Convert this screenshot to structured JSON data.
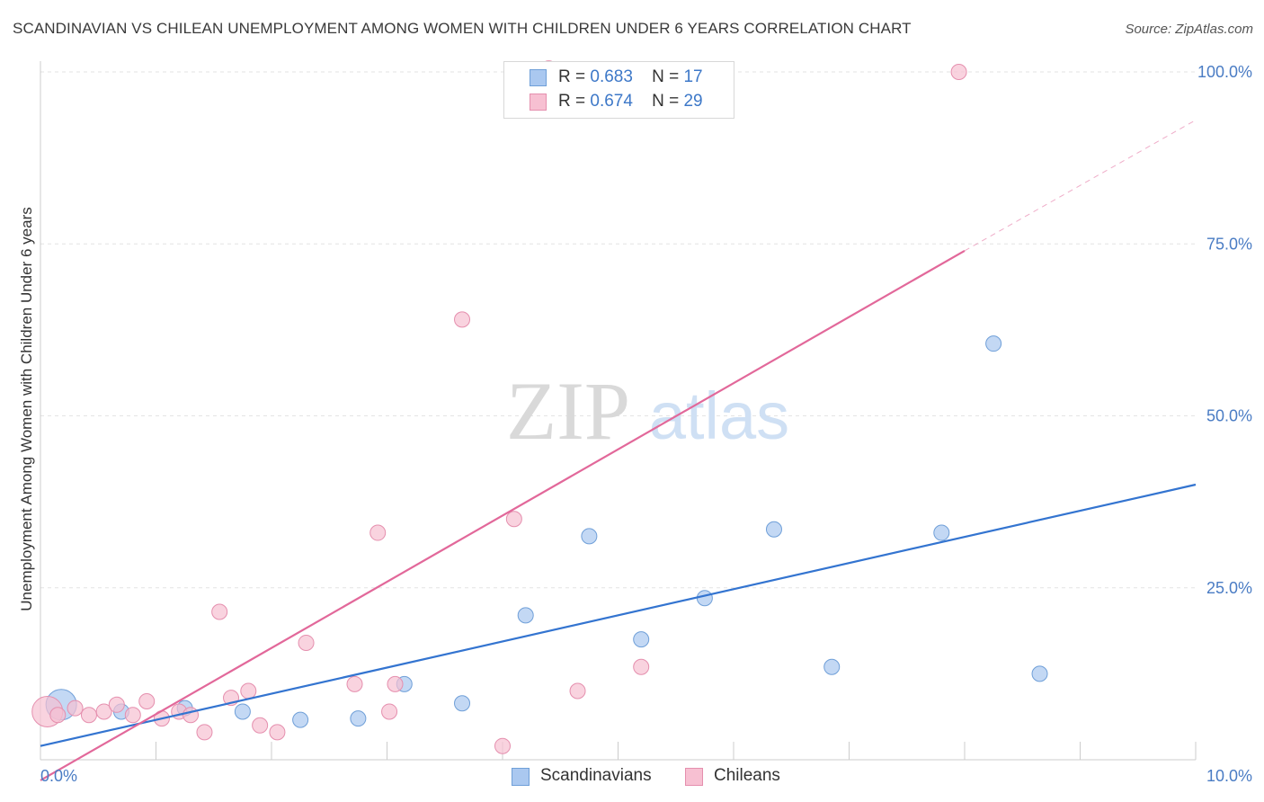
{
  "chart_data": {
    "type": "scatter",
    "title": "SCANDINAVIAN VS CHILEAN UNEMPLOYMENT AMONG WOMEN WITH CHILDREN UNDER 6 YEARS CORRELATION CHART",
    "source": "Source: ZipAtlas.com",
    "xlabel": "",
    "ylabel": "Unemployment Among Women with Children Under 6 years",
    "xlim": [
      0,
      10
    ],
    "ylim": [
      0,
      100
    ],
    "x_ticks": [
      "0.0%",
      "10.0%"
    ],
    "y_ticks": [
      "25.0%",
      "50.0%",
      "75.0%",
      "100.0%"
    ],
    "watermark": "ZIPatlas",
    "legend_top": [
      {
        "series": "Scandinavians",
        "r_label": "R =",
        "r_value": "0.683",
        "n_label": "N =",
        "n_value": "17"
      },
      {
        "series": "Chileans",
        "r_label": "R =",
        "r_value": "0.674",
        "n_label": "N =",
        "n_value": "29"
      }
    ],
    "series": [
      {
        "name": "Scandinavians",
        "fill": "#aac8f0",
        "stroke": "#6f9fd8",
        "line_color": "#3374d0",
        "trend": {
          "x0": 0.0,
          "y0": 2.0,
          "x1": 10.0,
          "y1": 40.0
        },
        "points": [
          {
            "x": 0.18,
            "y": 8.0,
            "big": true
          },
          {
            "x": 0.7,
            "y": 7.0
          },
          {
            "x": 1.25,
            "y": 7.5
          },
          {
            "x": 1.75,
            "y": 7.0
          },
          {
            "x": 2.25,
            "y": 5.8
          },
          {
            "x": 2.75,
            "y": 6.0
          },
          {
            "x": 3.15,
            "y": 11.0
          },
          {
            "x": 3.65,
            "y": 8.2
          },
          {
            "x": 4.2,
            "y": 21.0
          },
          {
            "x": 4.75,
            "y": 32.5
          },
          {
            "x": 5.2,
            "y": 17.5
          },
          {
            "x": 5.75,
            "y": 23.5
          },
          {
            "x": 6.35,
            "y": 33.5
          },
          {
            "x": 6.85,
            "y": 13.5
          },
          {
            "x": 7.8,
            "y": 33.0
          },
          {
            "x": 8.25,
            "y": 60.5
          },
          {
            "x": 8.65,
            "y": 12.5
          }
        ]
      },
      {
        "name": "Chileans",
        "fill": "#f7c0d2",
        "stroke": "#e58fae",
        "line_color": "#e2689a",
        "trend": {
          "x0": 0.0,
          "y0": -3.0,
          "x1": 8.0,
          "y1": 74.0
        },
        "trend_dashed": {
          "x0": 8.0,
          "y0": 74.0,
          "x1": 10.0,
          "y1": 93.0
        },
        "points": [
          {
            "x": 0.06,
            "y": 7.0,
            "big": true
          },
          {
            "x": 0.15,
            "y": 6.5
          },
          {
            "x": 0.3,
            "y": 7.5
          },
          {
            "x": 0.42,
            "y": 6.5
          },
          {
            "x": 0.55,
            "y": 7.0
          },
          {
            "x": 0.66,
            "y": 8.0
          },
          {
            "x": 0.8,
            "y": 6.5
          },
          {
            "x": 0.92,
            "y": 8.5
          },
          {
            "x": 1.05,
            "y": 6.0
          },
          {
            "x": 1.2,
            "y": 7.0
          },
          {
            "x": 1.3,
            "y": 6.5
          },
          {
            "x": 1.42,
            "y": 4.0
          },
          {
            "x": 1.55,
            "y": 21.5
          },
          {
            "x": 1.65,
            "y": 9.0
          },
          {
            "x": 1.8,
            "y": 10.0
          },
          {
            "x": 1.9,
            "y": 5.0
          },
          {
            "x": 2.05,
            "y": 4.0
          },
          {
            "x": 2.3,
            "y": 17.0
          },
          {
            "x": 2.72,
            "y": 11.0
          },
          {
            "x": 2.92,
            "y": 33.0
          },
          {
            "x": 3.02,
            "y": 7.0
          },
          {
            "x": 3.07,
            "y": 11.0
          },
          {
            "x": 3.65,
            "y": 64.0
          },
          {
            "x": 4.0,
            "y": 2.0
          },
          {
            "x": 4.1,
            "y": 35.0
          },
          {
            "x": 4.65,
            "y": 10.0
          },
          {
            "x": 5.2,
            "y": 13.5
          },
          {
            "x": 7.95,
            "y": 100.0
          },
          {
            "x": 4.4,
            "y": 100.5
          }
        ]
      }
    ]
  }
}
